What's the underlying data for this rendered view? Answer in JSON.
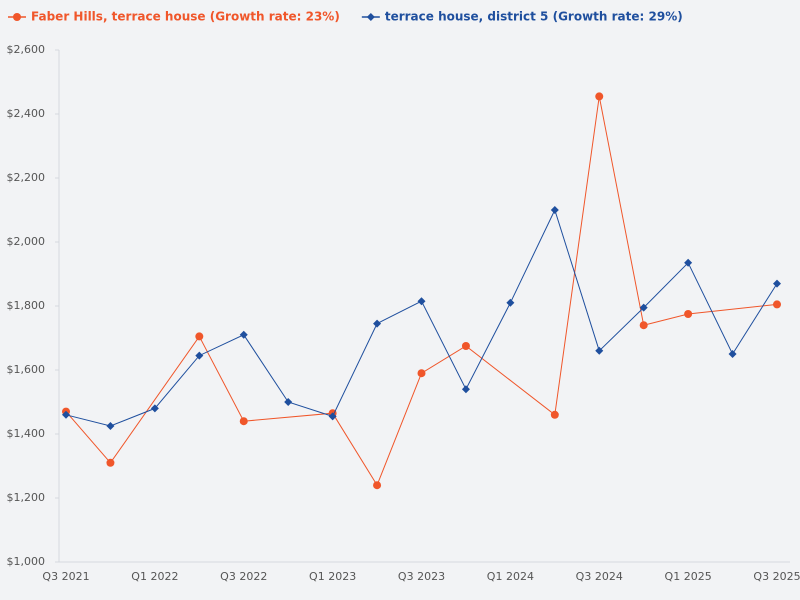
{
  "chart_data": {
    "type": "line",
    "categories": [
      "Q3 2021",
      null,
      "Q1 2022",
      null,
      "Q3 2022",
      null,
      "Q1 2023",
      null,
      "Q3 2023",
      null,
      "Q1 2024",
      null,
      "Q3 2024",
      null,
      "Q1 2025",
      null,
      "Q3 2025"
    ],
    "series": [
      {
        "name": "Faber Hills, terrace house (Growth rate: 23%)",
        "color": "#f0562a",
        "marker": "circle",
        "values": [
          1470,
          1310,
          null,
          1705,
          1440,
          null,
          1465,
          1240,
          1590,
          1675,
          null,
          1460,
          2455,
          1740,
          1775,
          null,
          1805
        ]
      },
      {
        "name": "terrace house, district 5 (Growth rate: 29%)",
        "color": "#1f4f9e",
        "marker": "diamond",
        "values": [
          1460,
          1425,
          1480,
          1645,
          1710,
          1500,
          1455,
          1745,
          1815,
          1540,
          1810,
          2100,
          1660,
          1795,
          1935,
          1650,
          1870
        ]
      }
    ],
    "connect_gaps": true,
    "ylim": [
      1000,
      2600
    ],
    "yticks": [
      {
        "value": 1000,
        "label": "$1,000"
      },
      {
        "value": 1200,
        "label": "$1,200"
      },
      {
        "value": 1400,
        "label": "$1,400"
      },
      {
        "value": 1600,
        "label": "$1,600"
      },
      {
        "value": 1800,
        "label": "$1,800"
      },
      {
        "value": 2000,
        "label": "$2,000"
      },
      {
        "value": 2200,
        "label": "$2,200"
      },
      {
        "value": 2400,
        "label": "$2,400"
      },
      {
        "value": 2600,
        "label": "$2,600"
      }
    ],
    "legend": "top-left",
    "grid": false
  }
}
